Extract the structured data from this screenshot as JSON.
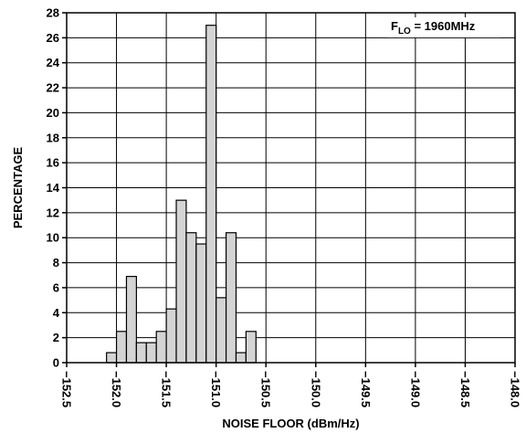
{
  "chart_data": {
    "type": "bar",
    "xlabel": "NOISE FLOOR (dBm/Hz)",
    "ylabel": "PERCENTAGE",
    "annotation": {
      "main": "F",
      "sub": "LO",
      "rest": " = 1960MHz"
    },
    "xlim": [
      -152.5,
      -148.0
    ],
    "ylim": [
      0,
      28
    ],
    "bin_width": 0.1,
    "x_ticks": [
      -152.5,
      -152.0,
      -151.5,
      -151.0,
      -150.5,
      -150.0,
      -149.5,
      -149.0,
      -148.5,
      -148.0
    ],
    "x_tick_labels": [
      "−152.5",
      "−152.0",
      "−151.5",
      "−151.0",
      "−150.5",
      "−150.0",
      "−149.5",
      "−149.0",
      "−148.5",
      "−148.0"
    ],
    "y_ticks": [
      0,
      2,
      4,
      6,
      8,
      10,
      12,
      14,
      16,
      18,
      20,
      22,
      24,
      26,
      28
    ],
    "y_tick_labels": [
      "0",
      "2",
      "4",
      "6",
      "8",
      "10",
      "12",
      "14",
      "16",
      "18",
      "20",
      "22",
      "24",
      "26",
      "28"
    ],
    "grid": true,
    "bars": [
      {
        "x": -152.05,
        "value": 0.8
      },
      {
        "x": -151.95,
        "value": 2.5
      },
      {
        "x": -151.85,
        "value": 6.9
      },
      {
        "x": -151.75,
        "value": 1.6
      },
      {
        "x": -151.65,
        "value": 1.6
      },
      {
        "x": -151.55,
        "value": 2.5
      },
      {
        "x": -151.45,
        "value": 4.3
      },
      {
        "x": -151.35,
        "value": 13.0
      },
      {
        "x": -151.25,
        "value": 10.4
      },
      {
        "x": -151.15,
        "value": 9.5
      },
      {
        "x": -151.05,
        "value": 27.0
      },
      {
        "x": -150.95,
        "value": 5.2
      },
      {
        "x": -150.85,
        "value": 10.4
      },
      {
        "x": -150.75,
        "value": 0.8
      },
      {
        "x": -150.65,
        "value": 2.5
      }
    ],
    "bar_color": "#d4d4d4",
    "edge_color": "#000000"
  }
}
